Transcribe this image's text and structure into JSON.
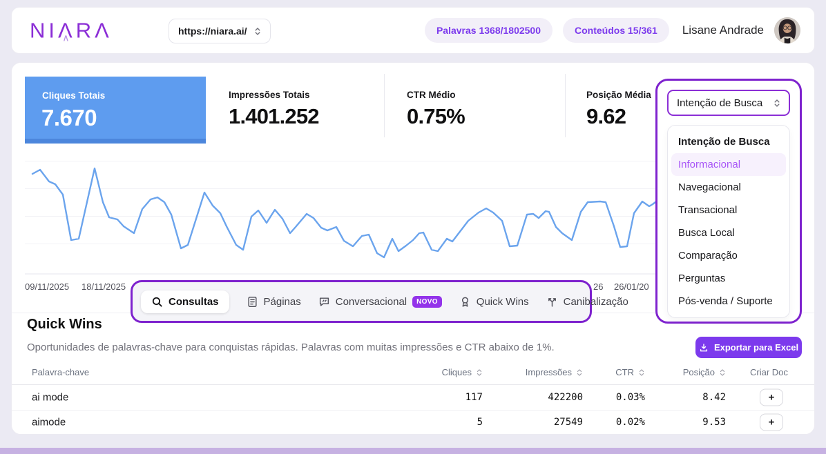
{
  "colors": {
    "accent": "#7E22CE",
    "primary": "#7C3AED",
    "novo": "#9333EA",
    "blue_card": "#5E9CEF",
    "blue_card_edge": "#4C86DC",
    "line": "#6BA4ED",
    "page_bg": "#EBEAF3",
    "bottom_strip": "#C6B1E2",
    "option_active": "#A855F7",
    "option_active_bg": "#F7F1FD"
  },
  "header": {
    "logo": {
      "p1": "NI",
      "a": "Λ",
      "inner": "∧",
      "p2": "R",
      "p3": "Λ"
    },
    "url_select": {
      "value": "https://niara.ai/"
    },
    "badges": {
      "palavras": "Palavras 1368/1802500",
      "conteudos": "Conteúdos 15/361"
    },
    "user": {
      "name": "Lisane Andrade"
    }
  },
  "stats": [
    {
      "label": "Cliques Totais",
      "value": "7.670",
      "highlighted": true
    },
    {
      "label": "Impressões Totais",
      "value": "1.401.252"
    },
    {
      "label": "CTR Médio",
      "value": "0.75%"
    },
    {
      "label": "Posição Média",
      "value": "9.62"
    }
  ],
  "intent_filter": {
    "selected": "Intenção de Busca",
    "options": [
      "Intenção de Busca",
      "Informacional",
      "Navegacional",
      "Transacional",
      "Busca Local",
      "Comparação",
      "Perguntas",
      "Pós-venda / Suporte"
    ],
    "active_option": "Informacional"
  },
  "chart_data": {
    "type": "line",
    "grid": true,
    "legend": false,
    "x_tick_labels": [
      "09/11/2025",
      "18/11/2025",
      "26",
      "26/01/20"
    ],
    "coordinate_space": "svg px, viewBox 0 0 915 165, y-down",
    "series": [
      {
        "name": "Cliques Totais",
        "color": "#6BA4ED",
        "points": [
          [
            11,
            19
          ],
          [
            22,
            13
          ],
          [
            35,
            30
          ],
          [
            44,
            34
          ],
          [
            55,
            49
          ],
          [
            67,
            115
          ],
          [
            78,
            113
          ],
          [
            101,
            11
          ],
          [
            113,
            60
          ],
          [
            122,
            82
          ],
          [
            134,
            85
          ],
          [
            143,
            95
          ],
          [
            158,
            105
          ],
          [
            170,
            70
          ],
          [
            182,
            56
          ],
          [
            192,
            53
          ],
          [
            202,
            60
          ],
          [
            212,
            78
          ],
          [
            226,
            127
          ],
          [
            236,
            122
          ],
          [
            260,
            46
          ],
          [
            272,
            65
          ],
          [
            283,
            76
          ],
          [
            292,
            95
          ],
          [
            306,
            122
          ],
          [
            316,
            129
          ],
          [
            328,
            81
          ],
          [
            338,
            72
          ],
          [
            350,
            90
          ],
          [
            362,
            71
          ],
          [
            373,
            84
          ],
          [
            384,
            105
          ],
          [
            392,
            96
          ],
          [
            408,
            77
          ],
          [
            418,
            83
          ],
          [
            429,
            97
          ],
          [
            438,
            101
          ],
          [
            451,
            96
          ],
          [
            462,
            116
          ],
          [
            475,
            124
          ],
          [
            488,
            109
          ],
          [
            498,
            107
          ],
          [
            510,
            134
          ],
          [
            520,
            140
          ],
          [
            532,
            113
          ],
          [
            541,
            131
          ],
          [
            552,
            123
          ],
          [
            562,
            115
          ],
          [
            571,
            105
          ],
          [
            577,
            104
          ],
          [
            589,
            129
          ],
          [
            598,
            131
          ],
          [
            611,
            113
          ],
          [
            619,
            117
          ],
          [
            642,
            87
          ],
          [
            657,
            75
          ],
          [
            668,
            69
          ],
          [
            678,
            75
          ],
          [
            691,
            87
          ],
          [
            702,
            124
          ],
          [
            713,
            123
          ],
          [
            727,
            78
          ],
          [
            736,
            77
          ],
          [
            744,
            83
          ],
          [
            754,
            73
          ],
          [
            759,
            74
          ],
          [
            769,
            96
          ],
          [
            778,
            105
          ],
          [
            792,
            115
          ],
          [
            805,
            74
          ],
          [
            815,
            60
          ],
          [
            833,
            59
          ],
          [
            841,
            60
          ],
          [
            853,
            95
          ],
          [
            862,
            125
          ],
          [
            872,
            124
          ],
          [
            882,
            76
          ],
          [
            894,
            59
          ],
          [
            904,
            66
          ],
          [
            909,
            63
          ],
          [
            913,
            60
          ]
        ]
      }
    ]
  },
  "tabs": [
    {
      "label": "Consultas",
      "icon": "search-icon",
      "active": true
    },
    {
      "label": "Páginas",
      "icon": "file-icon"
    },
    {
      "label": "Conversacional",
      "icon": "chat-icon",
      "badge": "NOVO"
    },
    {
      "label": "Quick Wins",
      "icon": "award-icon"
    },
    {
      "label": "Canibalização",
      "icon": "split-icon"
    }
  ],
  "quick_wins": {
    "title": "Quick Wins",
    "description": "Oportunidades de palavras-chave para conquistas rápidas. Palavras com muitas impressões e CTR abaixo de 1%.",
    "export_label": "Exportar para Excel",
    "table": {
      "columns": [
        "Palavra-chave",
        "Cliques",
        "Impressões",
        "CTR",
        "Posição",
        "Criar Doc"
      ],
      "rows": [
        {
          "keyword": "ai mode",
          "clicks": "117",
          "impressions": "422200",
          "ctr": "0.03%",
          "position": "8.42",
          "add": "+"
        },
        {
          "keyword": "aimode",
          "clicks": "5",
          "impressions": "27549",
          "ctr": "0.02%",
          "position": "9.53",
          "add": "+"
        }
      ]
    }
  }
}
